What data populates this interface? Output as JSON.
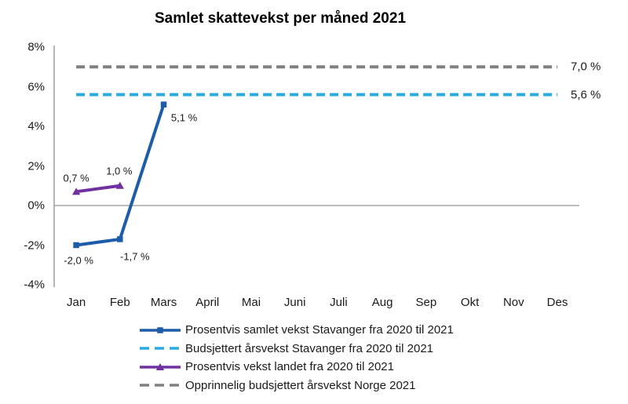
{
  "title": "Samlet skattevekst per måned 2021",
  "colors": {
    "stavanger": "#1C5CA8",
    "stavanger_budget": "#2BAAE2",
    "landet": "#7030A0",
    "norge_budget": "#808080",
    "zero_line": "#A6A6A6",
    "axis": "#9E9E9E",
    "text": "#1A1A1A"
  },
  "chart_data": {
    "type": "line",
    "title": "Samlet skattevekst per måned 2021",
    "x_categories": [
      "Jan",
      "Feb",
      "Mars",
      "April",
      "Mai",
      "Juni",
      "Juli",
      "Aug",
      "Sep",
      "Okt",
      "Nov",
      "Des"
    ],
    "y_tick_labels": [
      "8%",
      "6%",
      "4%",
      "2%",
      "0%",
      "-2%",
      "-4%"
    ],
    "y_tick_values": [
      8,
      6,
      4,
      2,
      0,
      -2,
      -4
    ],
    "ylim": [
      -4,
      8
    ],
    "grid": "none",
    "legend_position": "bottom",
    "series": [
      {
        "name": "Prosentvis samlet vekst Stavanger fra 2020 til 2021",
        "style": "solid",
        "marker": "square",
        "color": "#1C5CA8",
        "x": [
          "Jan",
          "Feb",
          "Mars"
        ],
        "values": [
          -2.0,
          -1.7,
          5.1
        ],
        "point_labels": [
          "-2,0 %",
          "-1,7 %",
          "5,1 %"
        ]
      },
      {
        "name": "Budsjettert årsvekst Stavanger fra 2020 til 2021",
        "style": "dashed",
        "marker": "none",
        "color": "#2BAAE2",
        "constant_value": 5.6,
        "right_label": "5,6 %"
      },
      {
        "name": "Prosentvis vekst landet fra 2020 til 2021",
        "style": "solid",
        "marker": "triangle",
        "color": "#7030A0",
        "x": [
          "Jan",
          "Feb"
        ],
        "values": [
          0.7,
          1.0
        ],
        "point_labels": [
          "0,7 %",
          "1,0 %"
        ]
      },
      {
        "name": "Opprinnelig budsjettert årsvekst Norge 2021",
        "style": "dashed",
        "marker": "none",
        "color": "#808080",
        "constant_value": 7.0,
        "right_label": "7,0 %"
      }
    ]
  }
}
